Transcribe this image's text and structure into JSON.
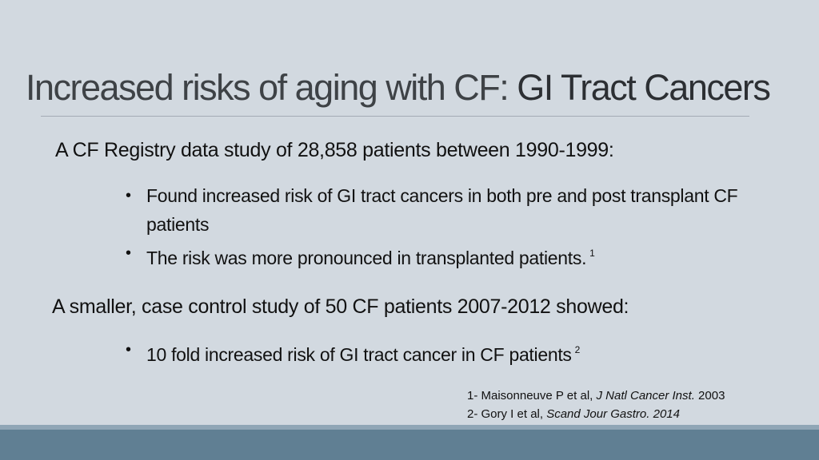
{
  "slide": {
    "title_light": "Increased risks of aging with CF: ",
    "title_bold": "GI Tract Cancers",
    "section1": {
      "heading": "A CF Registry data study of 28,858 patients between 1990-1999:",
      "bullets": [
        {
          "text": "Found increased risk of GI tract cancers in both pre and post transplant CF patients",
          "sup": ""
        },
        {
          "text": "The risk was more pronounced in transplanted patients.",
          "sup": "1"
        }
      ]
    },
    "section2": {
      "heading": "A smaller, case control study of 50 CF patients 2007-2012 showed:",
      "bullets": [
        {
          "text": "10 fold increased risk of GI tract cancer in CF patients",
          "sup": "2"
        }
      ]
    },
    "references": [
      {
        "prefix": "1- Maisonneuve P et al, ",
        "journal": "J Natl Cancer Inst.",
        "suffix": " 2003"
      },
      {
        "prefix": "2- Gory I et al, ",
        "journal": "Scand Jour Gastro. 2014",
        "suffix": ""
      }
    ]
  },
  "colors": {
    "background": "#d2d9e0",
    "band_light": "#90a6b6",
    "band_dark": "#607f93"
  }
}
